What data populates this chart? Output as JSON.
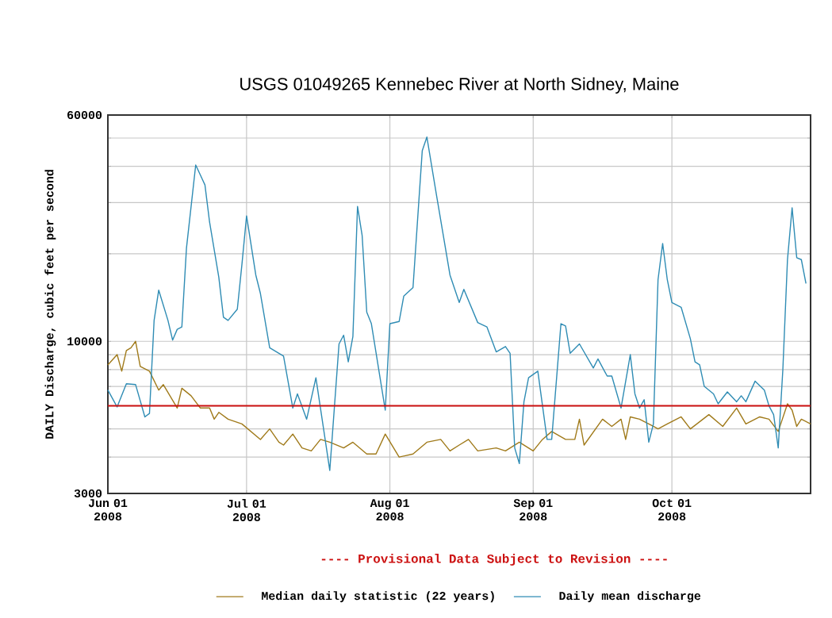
{
  "chart_data": {
    "type": "line",
    "title": "USGS 01049265 Kennebec River at North Sidney, Maine",
    "ylabel": "DAILY Discharge, cubic feet per second",
    "annotations": [
      "---- Provisional Data Subject to Revision ----"
    ],
    "xlim": [
      "2008-06-01",
      "2008-10-31"
    ],
    "xticks": [
      {
        "value": "2008-06-01",
        "label": "Jun 01 2008"
      },
      {
        "value": "2008-07-01",
        "label": "Jul 01 2008"
      },
      {
        "value": "2008-08-01",
        "label": "Aug 01 2008"
      },
      {
        "value": "2008-09-01",
        "label": "Sep 01 2008"
      },
      {
        "value": "2008-10-01",
        "label": "Oct 01 2008"
      }
    ],
    "ylim": [
      3000,
      60000
    ],
    "yticks": [
      3000,
      {
        "value": 4000,
        "label": null
      },
      {
        "value": 5000,
        "label": null
      },
      {
        "value": 6000,
        "label": null
      },
      {
        "value": 7000,
        "label": null
      },
      {
        "value": 8000,
        "label": null
      },
      {
        "value": 9000,
        "label": null
      },
      10000,
      {
        "value": 20000,
        "label": null
      },
      {
        "value": 30000,
        "label": null
      },
      {
        "value": 40000,
        "label": null
      },
      {
        "value": 50000,
        "label": null
      },
      60000
    ],
    "log": true,
    "grid": true,
    "legend": "bottom",
    "marker": "none",
    "ref_lines": [
      {
        "axis": "y",
        "value": 6000,
        "color": "#cc1111"
      }
    ],
    "series": [
      {
        "name": "Median daily statistic (22 years)",
        "color": "#a07a1a",
        "x": [
          "2008-06-01",
          "2008-06-03",
          "2008-06-04",
          "2008-06-05",
          "2008-06-06",
          "2008-06-07",
          "2008-06-08",
          "2008-06-10",
          "2008-06-12",
          "2008-06-13",
          "2008-06-16",
          "2008-06-17",
          "2008-06-19",
          "2008-06-21",
          "2008-06-23",
          "2008-06-24",
          "2008-06-25",
          "2008-06-27",
          "2008-06-30",
          "2008-07-04",
          "2008-07-06",
          "2008-07-08",
          "2008-07-09",
          "2008-07-11",
          "2008-07-13",
          "2008-07-15",
          "2008-07-17",
          "2008-07-19",
          "2008-07-22",
          "2008-07-24",
          "2008-07-27",
          "2008-07-29",
          "2008-07-31",
          "2008-08-03",
          "2008-08-06",
          "2008-08-09",
          "2008-08-12",
          "2008-08-14",
          "2008-08-16",
          "2008-08-18",
          "2008-08-20",
          "2008-08-24",
          "2008-08-26",
          "2008-08-29",
          "2008-09-01",
          "2008-09-03",
          "2008-09-05",
          "2008-09-08",
          "2008-09-10",
          "2008-09-11",
          "2008-09-12",
          "2008-09-16",
          "2008-09-18",
          "2008-09-20",
          "2008-09-21",
          "2008-09-22",
          "2008-09-24",
          "2008-09-25",
          "2008-09-27",
          "2008-09-28",
          "2008-09-30",
          "2008-10-03",
          "2008-10-05",
          "2008-10-09",
          "2008-10-12",
          "2008-10-15",
          "2008-10-17",
          "2008-10-20",
          "2008-10-22",
          "2008-10-24",
          "2008-10-26",
          "2008-10-27",
          "2008-10-28",
          "2008-10-29",
          "2008-10-31"
        ],
        "values": [
          8300,
          9000,
          7900,
          9300,
          9500,
          10000,
          8200,
          7900,
          6800,
          7100,
          5900,
          6900,
          6500,
          5900,
          5900,
          5400,
          5700,
          5400,
          5200,
          4600,
          5000,
          4500,
          4400,
          4800,
          4300,
          4200,
          4600,
          4500,
          4300,
          4500,
          4100,
          4100,
          4800,
          4000,
          4100,
          4500,
          4600,
          4200,
          4400,
          4600,
          4200,
          4300,
          4200,
          4500,
          4200,
          4600,
          4900,
          4600,
          4600,
          5400,
          4400,
          5400,
          5100,
          5400,
          4600,
          5500,
          5400,
          5300,
          5100,
          5000,
          5200,
          5500,
          5000,
          5600,
          5100,
          5900,
          5200,
          5500,
          5400,
          4900,
          6100,
          5800,
          5100,
          5400,
          5200
        ]
      },
      {
        "name": "Daily mean discharge",
        "color": "#2f8cb4",
        "x": [
          "2008-06-01",
          "2008-06-03",
          "2008-06-05",
          "2008-06-07",
          "2008-06-09",
          "2008-06-10",
          "2008-06-11",
          "2008-06-12",
          "2008-06-14",
          "2008-06-15",
          "2008-06-16",
          "2008-06-17",
          "2008-06-18",
          "2008-06-20",
          "2008-06-22",
          "2008-06-23",
          "2008-06-25",
          "2008-06-26",
          "2008-06-27",
          "2008-06-29",
          "2008-06-30",
          "2008-07-01",
          "2008-07-03",
          "2008-07-04",
          "2008-07-06",
          "2008-07-09",
          "2008-07-11",
          "2008-07-12",
          "2008-07-14",
          "2008-07-16",
          "2008-07-19",
          "2008-07-21",
          "2008-07-22",
          "2008-07-23",
          "2008-07-24",
          "2008-07-25",
          "2008-07-26",
          "2008-07-27",
          "2008-07-28",
          "2008-07-31",
          "2008-08-01",
          "2008-08-03",
          "2008-08-04",
          "2008-08-06",
          "2008-08-08",
          "2008-08-09",
          "2008-08-11",
          "2008-08-14",
          "2008-08-16",
          "2008-08-17",
          "2008-08-20",
          "2008-08-22",
          "2008-08-24",
          "2008-08-26",
          "2008-08-27",
          "2008-08-28",
          "2008-08-29",
          "2008-08-30",
          "2008-08-31",
          "2008-09-02",
          "2008-09-04",
          "2008-09-05",
          "2008-09-07",
          "2008-09-08",
          "2008-09-09",
          "2008-09-11",
          "2008-09-14",
          "2008-09-15",
          "2008-09-17",
          "2008-09-18",
          "2008-09-20",
          "2008-09-22",
          "2008-09-23",
          "2008-09-24",
          "2008-09-25",
          "2008-09-26",
          "2008-09-27",
          "2008-09-28",
          "2008-09-29",
          "2008-09-30",
          "2008-10-01",
          "2008-10-03",
          "2008-10-05",
          "2008-10-06",
          "2008-10-07",
          "2008-10-08",
          "2008-10-10",
          "2008-10-11",
          "2008-10-13",
          "2008-10-15",
          "2008-10-16",
          "2008-10-17",
          "2008-10-19",
          "2008-10-21",
          "2008-10-22",
          "2008-10-23",
          "2008-10-24",
          "2008-10-25",
          "2008-10-26",
          "2008-10-27",
          "2008-10-28",
          "2008-10-29",
          "2008-10-30"
        ],
        "values": [
          6800,
          5950,
          7150,
          7100,
          5500,
          5650,
          11800,
          15000,
          11800,
          10100,
          11000,
          11200,
          20900,
          40400,
          34500,
          25700,
          16600,
          12100,
          11800,
          12900,
          18400,
          27000,
          16900,
          14600,
          9500,
          8900,
          5900,
          6600,
          5400,
          7500,
          3600,
          9800,
          10500,
          8500,
          10400,
          29100,
          23100,
          12600,
          11500,
          5800,
          11500,
          11700,
          14300,
          15300,
          45200,
          50400,
          32400,
          16900,
          13600,
          15100,
          11600,
          11200,
          9200,
          9600,
          9100,
          4300,
          3800,
          6200,
          7500,
          7900,
          4600,
          4600,
          11500,
          11300,
          9100,
          9800,
          8100,
          8700,
          7600,
          7600,
          5900,
          9000,
          6600,
          5900,
          6300,
          4500,
          5200,
          16300,
          21700,
          16300,
          13600,
          13100,
          10200,
          8500,
          8300,
          7000,
          6600,
          6100,
          6700,
          6200,
          6500,
          6200,
          7300,
          6800,
          6000,
          5600,
          4300,
          8000,
          19100,
          28800,
          19400,
          19100,
          15800
        ]
      }
    ]
  }
}
